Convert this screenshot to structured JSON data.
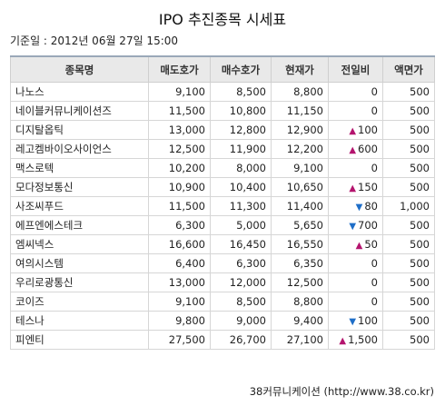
{
  "title": "IPO 추진종목 시세표",
  "base_date": "기준일 : 2012년 06월 27일 15:00",
  "columns": [
    "종목명",
    "매도호가",
    "매수호가",
    "현재가",
    "전일비",
    "액면가"
  ],
  "rows": [
    {
      "name": "나노스",
      "ask": "9,100",
      "bid": "8,500",
      "price": "8,800",
      "change": "0",
      "dir": "",
      "par": "500"
    },
    {
      "name": "네이블커뮤니케이션즈",
      "ask": "11,500",
      "bid": "10,800",
      "price": "11,150",
      "change": "0",
      "dir": "",
      "par": "500"
    },
    {
      "name": "디지탈옵틱",
      "ask": "13,000",
      "bid": "12,800",
      "price": "12,900",
      "change": "100",
      "dir": "up",
      "par": "500"
    },
    {
      "name": "레고켐바이오사이언스",
      "ask": "12,500",
      "bid": "11,900",
      "price": "12,200",
      "change": "600",
      "dir": "up",
      "par": "500"
    },
    {
      "name": "맥스로텍",
      "ask": "10,200",
      "bid": "8,000",
      "price": "9,100",
      "change": "0",
      "dir": "",
      "par": "500"
    },
    {
      "name": "모다정보통신",
      "ask": "10,900",
      "bid": "10,400",
      "price": "10,650",
      "change": "150",
      "dir": "up",
      "par": "500"
    },
    {
      "name": "사조씨푸드",
      "ask": "11,500",
      "bid": "11,300",
      "price": "11,400",
      "change": "80",
      "dir": "down",
      "par": "1,000"
    },
    {
      "name": "에프엔에스테크",
      "ask": "6,300",
      "bid": "5,000",
      "price": "5,650",
      "change": "700",
      "dir": "down",
      "par": "500"
    },
    {
      "name": "엠씨넥스",
      "ask": "16,600",
      "bid": "16,450",
      "price": "16,550",
      "change": "50",
      "dir": "up",
      "par": "500"
    },
    {
      "name": "여의시스템",
      "ask": "6,400",
      "bid": "6,300",
      "price": "6,350",
      "change": "0",
      "dir": "",
      "par": "500"
    },
    {
      "name": "우리로광통신",
      "ask": "13,000",
      "bid": "12,000",
      "price": "12,500",
      "change": "0",
      "dir": "",
      "par": "500"
    },
    {
      "name": "코이즈",
      "ask": "9,100",
      "bid": "8,500",
      "price": "8,800",
      "change": "0",
      "dir": "",
      "par": "500"
    },
    {
      "name": "테스나",
      "ask": "9,800",
      "bid": "9,000",
      "price": "9,400",
      "change": "100",
      "dir": "down",
      "par": "500"
    },
    {
      "name": "피엔티",
      "ask": "27,500",
      "bid": "26,700",
      "price": "27,100",
      "change": "1,500",
      "dir": "up",
      "par": "500"
    }
  ],
  "footer": "38커뮤니케이션 (http://www.38.co.kr)"
}
